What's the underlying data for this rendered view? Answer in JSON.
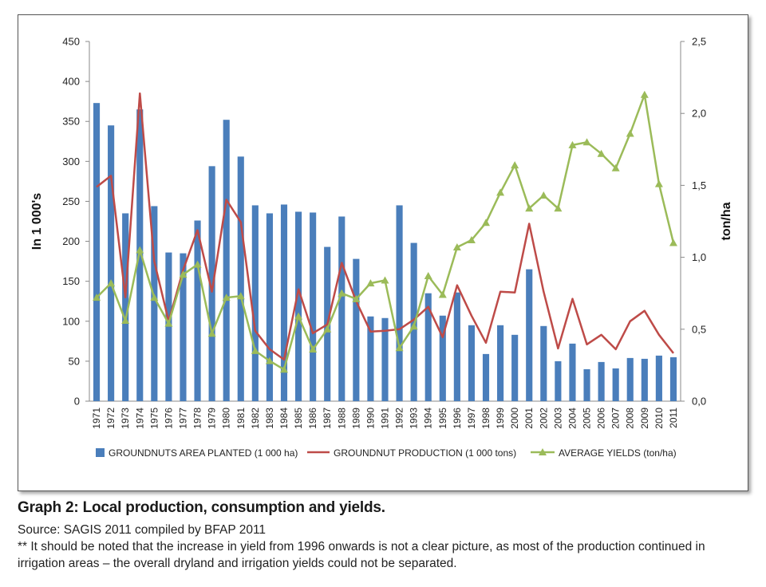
{
  "caption": {
    "title": "Graph 2: Local production, consumption and yields.",
    "source": "Source: SAGIS 2011 compiled by BFAP 2011",
    "note": "** It should be noted that the increase in yield from 1996 onwards is not a clear picture, as most of the production continued in irrigation areas – the overall dryland and irrigation yields could not be separated."
  },
  "chart_data": {
    "type": "bar",
    "title": "",
    "ylabel": "In 1 000's",
    "y2label": "ton/ha",
    "ylim": [
      0,
      450
    ],
    "yticks": [
      0,
      50,
      100,
      150,
      200,
      250,
      300,
      350,
      400,
      450
    ],
    "y2lim": [
      0,
      2.5
    ],
    "y2ticks": [
      "0,0",
      "0,5",
      "1,0",
      "1,5",
      "2,0",
      "2,5"
    ],
    "grid": false,
    "legend_position": "bottom",
    "categories": [
      "1971",
      "1972",
      "1973",
      "1974",
      "1975",
      "1976",
      "1977",
      "1978",
      "1979",
      "1980",
      "1981",
      "1982",
      "1983",
      "1984",
      "1985",
      "1986",
      "1987",
      "1988",
      "1989",
      "1990",
      "1991",
      "1992",
      "1993",
      "1994",
      "1995",
      "1996",
      "1997",
      "1998",
      "1999",
      "2000",
      "2001",
      "2002",
      "2003",
      "2004",
      "2005",
      "2006",
      "2007",
      "2008",
      "2009",
      "2010",
      "2011"
    ],
    "series": [
      {
        "name": "GROUNDNUTS AREA PLANTED (1 000 ha)",
        "type": "bar",
        "axis": "left",
        "color": "#4a7ebb",
        "values": [
          373,
          345,
          235,
          365,
          244,
          186,
          185,
          226,
          294,
          352,
          306,
          245,
          235,
          246,
          237,
          236,
          193,
          231,
          178,
          106,
          104,
          245,
          198,
          135,
          107,
          136,
          95,
          59,
          95,
          83,
          165,
          94,
          50,
          72,
          40,
          49,
          41,
          54,
          53,
          57,
          55
        ]
      },
      {
        "name": "GROUNDNUT PRODUCTION (1 000 tons)",
        "type": "line",
        "axis": "left",
        "color": "#be4b48",
        "values": [
          268,
          282,
          130,
          385,
          175,
          100,
          164,
          214,
          137,
          252,
          224,
          88,
          65,
          52,
          140,
          85,
          96,
          173,
          125,
          87,
          88,
          90,
          102,
          118,
          80,
          145,
          107,
          73,
          137,
          136,
          222,
          137,
          66,
          128,
          71,
          83,
          65,
          100,
          113,
          83,
          60
        ]
      },
      {
        "name": "AVERAGE YIELDS (ton/ha)",
        "type": "line",
        "axis": "right",
        "color": "#9bbb59",
        "marker": "triangle",
        "values": [
          0.72,
          0.82,
          0.56,
          1.05,
          0.72,
          0.54,
          0.88,
          0.95,
          0.47,
          0.72,
          0.73,
          0.35,
          0.28,
          0.22,
          0.59,
          0.36,
          0.5,
          0.75,
          0.71,
          0.82,
          0.84,
          0.37,
          0.52,
          0.87,
          0.74,
          1.07,
          1.12,
          1.24,
          1.45,
          1.64,
          1.34,
          1.43,
          1.34,
          1.78,
          1.8,
          1.72,
          1.62,
          1.86,
          2.13,
          1.51,
          1.1
        ]
      }
    ]
  }
}
